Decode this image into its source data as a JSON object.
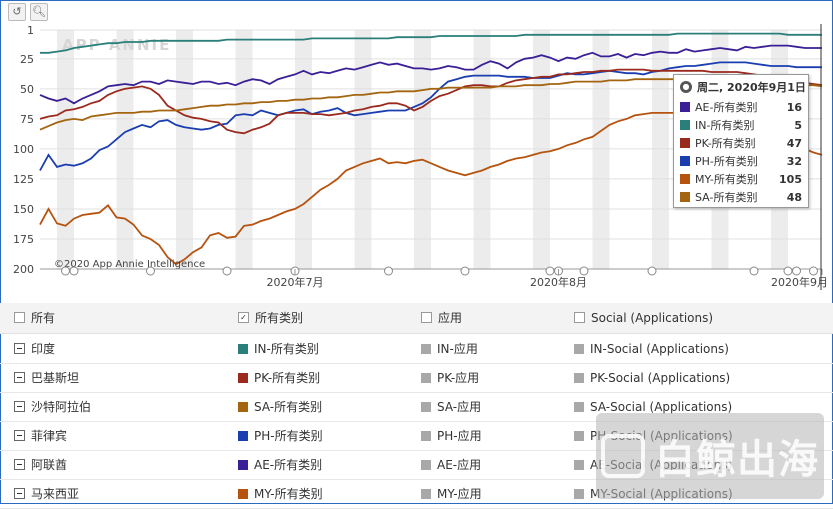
{
  "toolbar": {
    "reset_icon": "undo-icon",
    "zoom_icon": "zoom-icon"
  },
  "chart_data": {
    "type": "line",
    "y_reversed": true,
    "ylim": [
      1,
      200
    ],
    "yticks": [
      "1",
      "25",
      "50",
      "75",
      "100",
      "125",
      "150",
      "175",
      "200"
    ],
    "xlabels": [
      {
        "label": "2020年7月",
        "day": 30
      },
      {
        "label": "2020年8月",
        "day": 61
      },
      {
        "label": "2020年9月",
        "day": 92
      }
    ],
    "x_days": 93,
    "copyright": "©2020 App Annie Intelligence",
    "brand": "APP ANNIE",
    "series": [
      {
        "name": "IN-所有类别",
        "color": "#2a7f7a",
        "values": [
          20,
          20,
          19,
          18,
          16,
          15,
          14,
          13,
          12,
          12,
          11,
          11,
          11,
          10,
          10,
          10,
          10,
          10,
          10,
          10,
          10,
          10,
          9,
          9,
          9,
          9,
          9,
          9,
          9,
          9,
          9,
          9,
          8,
          8,
          8,
          8,
          8,
          8,
          8,
          8,
          8,
          8,
          7,
          7,
          7,
          7,
          7,
          6,
          6,
          6,
          6,
          6,
          6,
          6,
          6,
          6,
          6,
          5,
          5,
          5,
          5,
          5,
          5,
          5,
          5,
          5,
          5,
          5,
          5,
          5,
          5,
          5,
          5,
          5,
          5,
          4,
          4,
          4,
          4,
          4,
          4,
          4,
          4,
          4,
          4,
          4,
          4,
          4,
          5,
          5,
          5,
          5,
          5
        ]
      },
      {
        "name": "AE-所有类别",
        "color": "#3a1f96",
        "values": [
          55,
          58,
          60,
          58,
          62,
          58,
          55,
          52,
          48,
          47,
          46,
          47,
          44,
          44,
          46,
          43,
          44,
          45,
          46,
          44,
          44,
          46,
          45,
          47,
          44,
          42,
          43,
          46,
          42,
          40,
          38,
          35,
          38,
          36,
          37,
          35,
          33,
          34,
          32,
          30,
          28,
          30,
          29,
          31,
          33,
          33,
          34,
          33,
          31,
          32,
          34,
          34,
          30,
          27,
          29,
          33,
          28,
          25,
          24,
          22,
          24,
          27,
          24,
          25,
          22,
          20,
          23,
          23,
          21,
          24,
          21,
          22,
          20,
          19,
          20,
          20,
          17,
          19,
          18,
          17,
          16,
          17,
          18,
          15,
          16,
          15,
          14,
          14,
          14,
          15,
          16,
          16,
          16
        ]
      },
      {
        "name": "PH-所有类别",
        "color": "#1a3eb0",
        "values": [
          118,
          105,
          115,
          113,
          114,
          112,
          108,
          101,
          98,
          92,
          86,
          83,
          80,
          82,
          77,
          76,
          80,
          82,
          83,
          84,
          83,
          80,
          79,
          72,
          71,
          72,
          68,
          70,
          72,
          70,
          68,
          67,
          71,
          69,
          68,
          66,
          70,
          72,
          71,
          70,
          69,
          68,
          68,
          68,
          65,
          62,
          57,
          50,
          44,
          42,
          40,
          39,
          39,
          39,
          39,
          40,
          40,
          40,
          41,
          41,
          41,
          39,
          37,
          38,
          38,
          37,
          36,
          35,
          36,
          37,
          37,
          38,
          36,
          35,
          33,
          32,
          31,
          31,
          30,
          29,
          28,
          28,
          28,
          28,
          29,
          30,
          31,
          31,
          31,
          32,
          32,
          32,
          32
        ]
      },
      {
        "name": "PK-所有类别",
        "color": "#9b2a1e",
        "values": [
          75,
          73,
          72,
          68,
          67,
          65,
          62,
          60,
          55,
          52,
          50,
          49,
          48,
          50,
          55,
          64,
          68,
          72,
          74,
          75,
          77,
          78,
          84,
          86,
          87,
          84,
          82,
          79,
          72,
          70,
          70,
          70,
          71,
          71,
          72,
          71,
          70,
          68,
          67,
          65,
          64,
          62,
          62,
          64,
          68,
          65,
          60,
          56,
          54,
          51,
          48,
          47,
          47,
          48,
          48,
          45,
          43,
          42,
          41,
          40,
          40,
          38,
          38,
          37,
          36,
          36,
          35,
          35,
          34,
          34,
          34,
          34,
          35,
          35,
          35,
          35,
          35,
          35,
          35,
          36,
          36,
          36,
          36,
          37,
          38,
          39,
          41,
          42,
          43,
          44,
          45,
          46,
          47
        ]
      },
      {
        "name": "SA-所有类别",
        "color": "#a36510",
        "values": [
          84,
          81,
          78,
          76,
          75,
          76,
          73,
          72,
          71,
          70,
          70,
          70,
          69,
          69,
          68,
          68,
          68,
          67,
          66,
          65,
          64,
          64,
          63,
          63,
          62,
          62,
          61,
          61,
          60,
          60,
          59,
          59,
          58,
          58,
          57,
          57,
          56,
          55,
          55,
          54,
          53,
          53,
          52,
          52,
          52,
          51,
          50,
          50,
          49,
          49,
          49,
          49,
          49,
          49,
          48,
          48,
          48,
          47,
          47,
          47,
          46,
          46,
          45,
          44,
          44,
          44,
          44,
          43,
          43,
          43,
          42,
          42,
          42,
          42,
          42,
          42,
          42,
          42,
          42,
          42,
          43,
          43,
          43,
          43,
          44,
          44,
          45,
          45,
          46,
          46,
          47,
          47,
          48
        ]
      },
      {
        "name": "MY-所有类别",
        "color": "#b5530f",
        "values": [
          163,
          150,
          162,
          164,
          158,
          155,
          154,
          153,
          147,
          157,
          158,
          163,
          172,
          175,
          180,
          190,
          196,
          192,
          186,
          182,
          172,
          170,
          174,
          173,
          164,
          163,
          160,
          158,
          155,
          152,
          150,
          146,
          140,
          134,
          130,
          125,
          118,
          115,
          112,
          110,
          108,
          112,
          111,
          112,
          110,
          109,
          112,
          115,
          118,
          120,
          122,
          120,
          118,
          115,
          113,
          110,
          108,
          107,
          105,
          103,
          102,
          100,
          97,
          95,
          92,
          90,
          85,
          80,
          77,
          75,
          72,
          71,
          70,
          70,
          70,
          70,
          70,
          70,
          70,
          71,
          72,
          73,
          75,
          77,
          80,
          83,
          86,
          90,
          94,
          97,
          100,
          103,
          105
        ]
      }
    ]
  },
  "tooltip": {
    "title": "周二, 2020年9月1日",
    "rows": [
      {
        "label": "AE-所有类别",
        "value": "16",
        "color": "#3a1f96"
      },
      {
        "label": "IN-所有类别",
        "value": "5",
        "color": "#2a7f7a"
      },
      {
        "label": "PK-所有类别",
        "value": "47",
        "color": "#9b2a1e"
      },
      {
        "label": "PH-所有类别",
        "value": "32",
        "color": "#1a3eb0"
      },
      {
        "label": "MY-所有类别",
        "value": "105",
        "color": "#b5530f"
      },
      {
        "label": "SA-所有类别",
        "value": "48",
        "color": "#a36510"
      }
    ]
  },
  "table": {
    "headers": [
      {
        "label": "所有",
        "checked": false
      },
      {
        "label": "所有类别",
        "checked": true
      },
      {
        "label": "应用",
        "checked": false
      },
      {
        "label": "Social (Applications)",
        "checked": false
      }
    ],
    "rows": [
      {
        "country": "印度",
        "all": "IN-所有类别",
        "app": "IN-应用",
        "social": "IN-Social (Applications)",
        "color": "#2a7f7a"
      },
      {
        "country": "巴基斯坦",
        "all": "PK-所有类别",
        "app": "PK-应用",
        "social": "PK-Social (Applications)",
        "color": "#9b2a1e"
      },
      {
        "country": "沙特阿拉伯",
        "all": "SA-所有类别",
        "app": "SA-应用",
        "social": "SA-Social (Applications)",
        "color": "#a36510"
      },
      {
        "country": "菲律宾",
        "all": "PH-所有类别",
        "app": "PH-应用",
        "social": "PH-Social (Applications)",
        "color": "#1a3eb0"
      },
      {
        "country": "阿联酋",
        "all": "AE-所有类别",
        "app": "AE-应用",
        "social": "AE-Social (Applications)",
        "color": "#3a1f96"
      },
      {
        "country": "马来西亚",
        "all": "MY-所有类别",
        "app": "MY-应用",
        "social": "MY-Social (Applications)",
        "color": "#b5530f"
      }
    ],
    "inactive_color": "#a8a8a8"
  },
  "watermark": {
    "text": "白鲸出海"
  }
}
